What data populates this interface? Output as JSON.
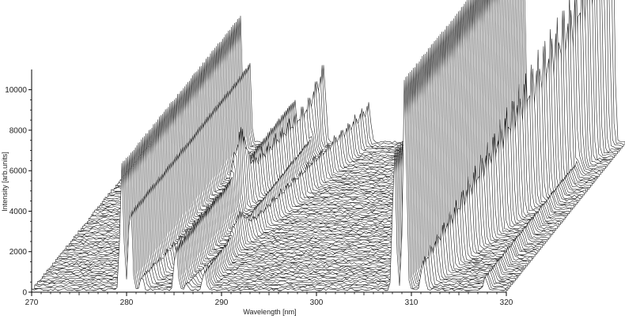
{
  "chart_data": {
    "type": "line",
    "chart_style": "3d-waterfall",
    "xlabel": "Wavelength [nm]",
    "ylabel": "Intensity [arb.units]",
    "xlim": [
      270,
      320
    ],
    "ylim": [
      0,
      11000
    ],
    "x_ticks": [
      270,
      280,
      290,
      300,
      310,
      320
    ],
    "x_tick_labels": [
      "270",
      "280",
      "290",
      "300",
      "310",
      "320"
    ],
    "y_ticks": [
      0,
      2000,
      4000,
      6000,
      8000,
      10000
    ],
    "y_tick_labels": [
      "0",
      "2000",
      "4000",
      "6000",
      "8000",
      "10000"
    ],
    "grid": false,
    "series_count": 80,
    "peaks": [
      {
        "wavelength": 279.5,
        "front_intensity": 6200,
        "back_intensity": 6200
      },
      {
        "wavelength": 280.4,
        "front_intensity": 4500,
        "back_intensity": 4500
      },
      {
        "wavelength": 285.2,
        "front_intensity": 2200,
        "back_intensity": 2200
      },
      {
        "wavelength": 288.2,
        "front_intensity": 1000,
        "back_intensity": 1000
      },
      {
        "wavelength": 308.2,
        "front_intensity": 7200,
        "back_intensity": 7200
      },
      {
        "wavelength": 309.3,
        "front_intensity": 10800,
        "back_intensity": 10800
      },
      {
        "wavelength": 317.8,
        "front_intensity": 700,
        "back_intensity": 700
      },
      {
        "wavelength": 281.6,
        "front_intensity": 700,
        "back_intensity": 3000,
        "drift_per_series": 0.085
      },
      {
        "wavelength": 286.3,
        "front_intensity": 300,
        "back_intensity": 2000,
        "drift_per_series": 0.085
      },
      {
        "wavelength": 311.2,
        "front_intensity": 1500,
        "back_intensity": 11200,
        "drift_per_series": 0.095
      }
    ]
  }
}
